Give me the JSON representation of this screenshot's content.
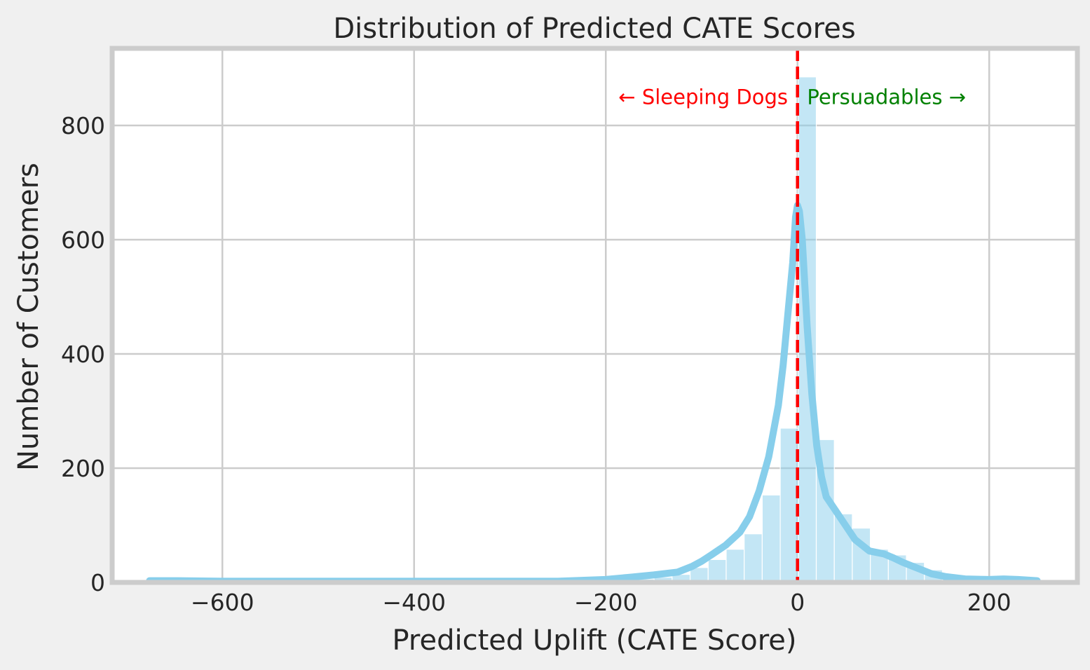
{
  "chart_data": {
    "type": "bar",
    "title": "Distribution of Predicted CATE Scores",
    "xlabel": "Predicted Uplift (CATE Score)",
    "ylabel": "Number of Customers",
    "xlim": [
      -715,
      292
    ],
    "ylim": [
      0,
      935
    ],
    "xticks": [
      -600,
      -400,
      -200,
      0,
      200
    ],
    "xtick_labels": [
      "−600",
      "−400",
      "−200",
      "0",
      "200"
    ],
    "yticks": [
      0,
      200,
      400,
      600,
      800
    ],
    "ytick_labels": [
      "0",
      "200",
      "400",
      "600",
      "800"
    ],
    "grid": true,
    "bar_color": "#87CEEB",
    "histogram": {
      "bin_edges": [
        -676,
        -657.2,
        -638.4,
        -619.6,
        -600.8,
        -582,
        -563.2,
        -544.4,
        -525.6,
        -506.8,
        -488,
        -469.2,
        -450.4,
        -431.6,
        -412.8,
        -394,
        -375.2,
        -356.4,
        -337.6,
        -318.8,
        -300,
        -281.2,
        -262.4,
        -243.6,
        -224.8,
        -206,
        -187.2,
        -168.4,
        -149.6,
        -130.8,
        -112,
        -93.2,
        -74.4,
        -55.6,
        -36.8,
        -18,
        0.8,
        19.6,
        38.4,
        57.2,
        76,
        94.8,
        113.6,
        132.4,
        151.2,
        170,
        188.8,
        207.6,
        226.4,
        245.2,
        264
      ],
      "counts": [
        1,
        0,
        0,
        0,
        0,
        0,
        0,
        0,
        0,
        0,
        0,
        0,
        0,
        0,
        0,
        0,
        0,
        0,
        0,
        0,
        0,
        0,
        0,
        1,
        1,
        2,
        4,
        6,
        9,
        14,
        26,
        40,
        58,
        85,
        153,
        270,
        885,
        250,
        120,
        95,
        58,
        48,
        35,
        22,
        10,
        4,
        2,
        3,
        1,
        1
      ]
    },
    "kde": {
      "color": "#87CEEB",
      "x": [
        -676,
        -650,
        -600,
        -500,
        -400,
        -300,
        -250,
        -200,
        -175,
        -150,
        -125,
        -110,
        -100,
        -90,
        -75,
        -60,
        -50,
        -40,
        -30,
        -20,
        -15,
        -10,
        -5,
        -2,
        0,
        2,
        5,
        10,
        15,
        20,
        25,
        30,
        40,
        50,
        60,
        75,
        90,
        100,
        110,
        125,
        140,
        155,
        175,
        200,
        215,
        230,
        250
      ],
      "y": [
        3,
        3,
        2,
        2,
        2,
        2,
        2,
        5,
        9,
        13,
        18,
        28,
        37,
        48,
        65,
        88,
        115,
        160,
        220,
        310,
        380,
        470,
        560,
        640,
        660,
        650,
        600,
        450,
        330,
        240,
        185,
        150,
        125,
        100,
        75,
        55,
        50,
        43,
        35,
        25,
        15,
        10,
        6,
        5,
        6,
        5,
        3
      ]
    },
    "reference_line": {
      "x": 0,
      "color": "#FF0000",
      "style": "dashed"
    },
    "annotations": [
      {
        "text": "← Sleeping Dogs",
        "color": "#FF0000",
        "x": -10,
        "y": 850,
        "anchor": "end"
      },
      {
        "text": "Persuadables →",
        "color": "#008000",
        "x": 10,
        "y": 850,
        "anchor": "start"
      }
    ]
  }
}
